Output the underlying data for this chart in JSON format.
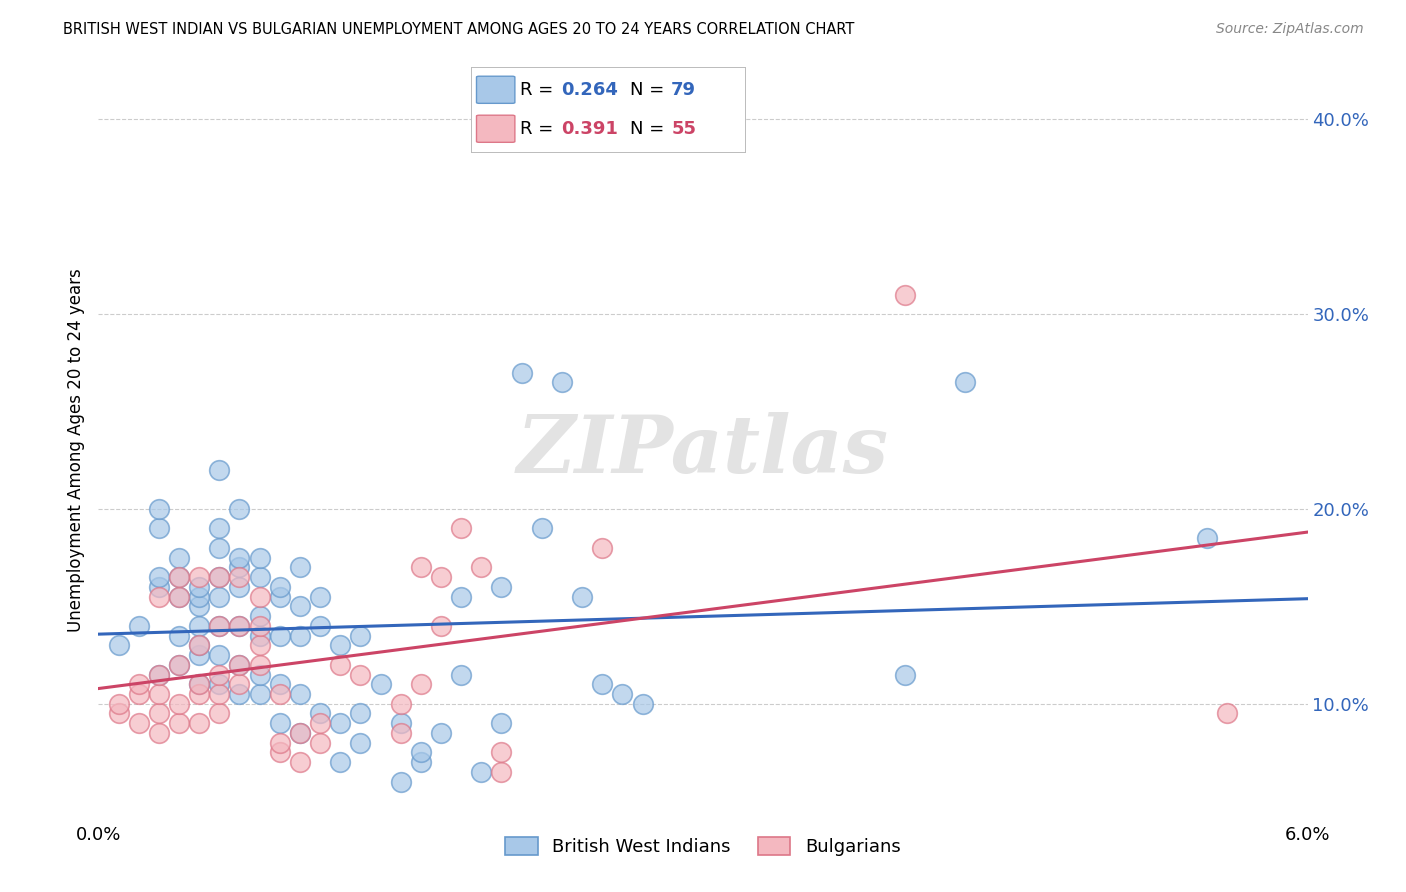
{
  "title": "BRITISH WEST INDIAN VS BULGARIAN UNEMPLOYMENT AMONG AGES 20 TO 24 YEARS CORRELATION CHART",
  "source": "Source: ZipAtlas.com",
  "ylabel": "Unemployment Among Ages 20 to 24 years",
  "ytick_vals": [
    0.1,
    0.2,
    0.3,
    0.4
  ],
  "ytick_labels": [
    "10.0%",
    "20.0%",
    "30.0%",
    "40.0%"
  ],
  "xlim": [
    0.0,
    0.06
  ],
  "ylim": [
    0.04,
    0.42
  ],
  "watermark": "ZIPatlas",
  "bwi_color": "#a8c8e8",
  "bwi_edge": "#6699cc",
  "bul_color": "#f4b8c0",
  "bul_edge": "#dd7788",
  "trend_bwi_color": "#3366bb",
  "trend_bul_color": "#cc4466",
  "legend_box_color": "#dddddd",
  "bwi_r_val": "0.264",
  "bwi_n_val": "79",
  "bul_r_val": "0.391",
  "bul_n_val": "55",
  "bwi_scatter": [
    [
      0.001,
      0.13
    ],
    [
      0.002,
      0.14
    ],
    [
      0.003,
      0.115
    ],
    [
      0.003,
      0.16
    ],
    [
      0.003,
      0.165
    ],
    [
      0.003,
      0.19
    ],
    [
      0.003,
      0.2
    ],
    [
      0.004,
      0.12
    ],
    [
      0.004,
      0.135
    ],
    [
      0.004,
      0.155
    ],
    [
      0.004,
      0.165
    ],
    [
      0.004,
      0.175
    ],
    [
      0.005,
      0.11
    ],
    [
      0.005,
      0.125
    ],
    [
      0.005,
      0.13
    ],
    [
      0.005,
      0.14
    ],
    [
      0.005,
      0.15
    ],
    [
      0.005,
      0.155
    ],
    [
      0.005,
      0.16
    ],
    [
      0.006,
      0.11
    ],
    [
      0.006,
      0.125
    ],
    [
      0.006,
      0.14
    ],
    [
      0.006,
      0.155
    ],
    [
      0.006,
      0.165
    ],
    [
      0.006,
      0.18
    ],
    [
      0.006,
      0.19
    ],
    [
      0.006,
      0.22
    ],
    [
      0.007,
      0.105
    ],
    [
      0.007,
      0.12
    ],
    [
      0.007,
      0.14
    ],
    [
      0.007,
      0.16
    ],
    [
      0.007,
      0.17
    ],
    [
      0.007,
      0.175
    ],
    [
      0.007,
      0.2
    ],
    [
      0.008,
      0.105
    ],
    [
      0.008,
      0.115
    ],
    [
      0.008,
      0.135
    ],
    [
      0.008,
      0.145
    ],
    [
      0.008,
      0.165
    ],
    [
      0.008,
      0.175
    ],
    [
      0.009,
      0.09
    ],
    [
      0.009,
      0.11
    ],
    [
      0.009,
      0.135
    ],
    [
      0.009,
      0.155
    ],
    [
      0.009,
      0.16
    ],
    [
      0.01,
      0.085
    ],
    [
      0.01,
      0.105
    ],
    [
      0.01,
      0.135
    ],
    [
      0.01,
      0.15
    ],
    [
      0.01,
      0.17
    ],
    [
      0.011,
      0.095
    ],
    [
      0.011,
      0.14
    ],
    [
      0.011,
      0.155
    ],
    [
      0.012,
      0.07
    ],
    [
      0.012,
      0.09
    ],
    [
      0.012,
      0.13
    ],
    [
      0.013,
      0.08
    ],
    [
      0.013,
      0.095
    ],
    [
      0.013,
      0.135
    ],
    [
      0.014,
      0.11
    ],
    [
      0.015,
      0.06
    ],
    [
      0.015,
      0.09
    ],
    [
      0.016,
      0.07
    ],
    [
      0.016,
      0.075
    ],
    [
      0.017,
      0.085
    ],
    [
      0.018,
      0.115
    ],
    [
      0.018,
      0.155
    ],
    [
      0.019,
      0.065
    ],
    [
      0.02,
      0.09
    ],
    [
      0.02,
      0.16
    ],
    [
      0.021,
      0.27
    ],
    [
      0.022,
      0.19
    ],
    [
      0.023,
      0.265
    ],
    [
      0.024,
      0.155
    ],
    [
      0.025,
      0.11
    ],
    [
      0.026,
      0.105
    ],
    [
      0.027,
      0.1
    ],
    [
      0.04,
      0.115
    ],
    [
      0.043,
      0.265
    ],
    [
      0.055,
      0.185
    ]
  ],
  "bul_scatter": [
    [
      0.001,
      0.095
    ],
    [
      0.001,
      0.1
    ],
    [
      0.002,
      0.09
    ],
    [
      0.002,
      0.105
    ],
    [
      0.002,
      0.11
    ],
    [
      0.003,
      0.085
    ],
    [
      0.003,
      0.095
    ],
    [
      0.003,
      0.105
    ],
    [
      0.003,
      0.115
    ],
    [
      0.003,
      0.155
    ],
    [
      0.004,
      0.09
    ],
    [
      0.004,
      0.1
    ],
    [
      0.004,
      0.12
    ],
    [
      0.004,
      0.155
    ],
    [
      0.004,
      0.165
    ],
    [
      0.005,
      0.09
    ],
    [
      0.005,
      0.105
    ],
    [
      0.005,
      0.11
    ],
    [
      0.005,
      0.13
    ],
    [
      0.005,
      0.165
    ],
    [
      0.006,
      0.095
    ],
    [
      0.006,
      0.105
    ],
    [
      0.006,
      0.115
    ],
    [
      0.006,
      0.14
    ],
    [
      0.006,
      0.165
    ],
    [
      0.007,
      0.11
    ],
    [
      0.007,
      0.12
    ],
    [
      0.007,
      0.14
    ],
    [
      0.007,
      0.165
    ],
    [
      0.008,
      0.12
    ],
    [
      0.008,
      0.13
    ],
    [
      0.008,
      0.14
    ],
    [
      0.008,
      0.155
    ],
    [
      0.009,
      0.075
    ],
    [
      0.009,
      0.08
    ],
    [
      0.009,
      0.105
    ],
    [
      0.01,
      0.07
    ],
    [
      0.01,
      0.085
    ],
    [
      0.011,
      0.08
    ],
    [
      0.011,
      0.09
    ],
    [
      0.012,
      0.12
    ],
    [
      0.013,
      0.115
    ],
    [
      0.015,
      0.085
    ],
    [
      0.015,
      0.1
    ],
    [
      0.016,
      0.11
    ],
    [
      0.016,
      0.17
    ],
    [
      0.017,
      0.14
    ],
    [
      0.017,
      0.165
    ],
    [
      0.018,
      0.19
    ],
    [
      0.019,
      0.17
    ],
    [
      0.02,
      0.065
    ],
    [
      0.02,
      0.075
    ],
    [
      0.025,
      0.18
    ],
    [
      0.04,
      0.31
    ],
    [
      0.056,
      0.095
    ]
  ]
}
